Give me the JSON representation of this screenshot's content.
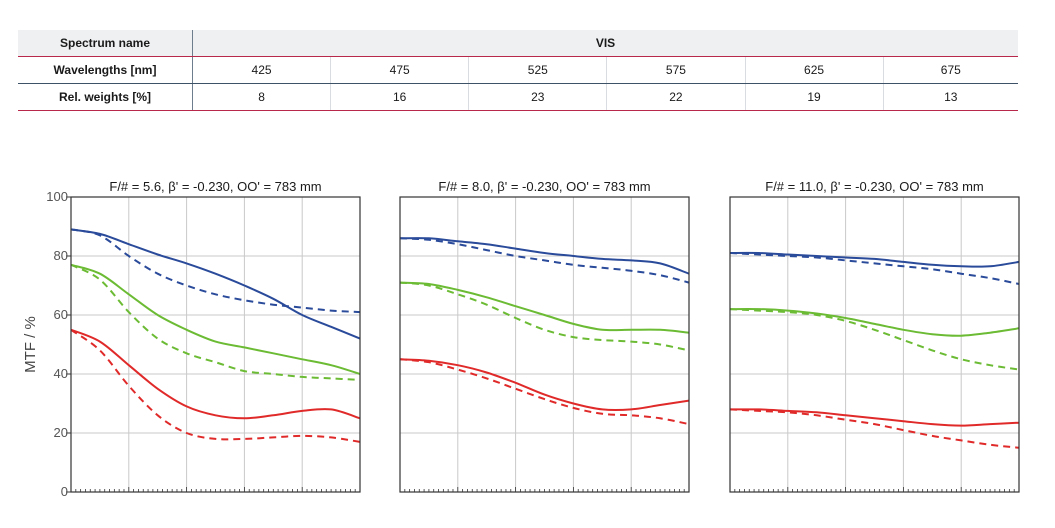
{
  "table": {
    "spectrum_label": "Spectrum name",
    "spectrum_value": "VIS",
    "wavelength_label": "Wavelengths [nm]",
    "weight_label": "Rel. weights [%]",
    "wavelengths": [
      "425",
      "475",
      "525",
      "575",
      "625",
      "675"
    ],
    "weights": [
      "8",
      "16",
      "23",
      "22",
      "19",
      "13"
    ]
  },
  "colors": {
    "blue": "#2a4a9a",
    "green": "#6cbb34",
    "red": "#e02a2a",
    "grid": "#c9c9c9",
    "frame": "#333333"
  },
  "chart_data": [
    {
      "type": "line",
      "title": "F/# = 5.6, β' = -0.230, OO' = 783 mm",
      "ylabel": "MTF / %",
      "ylim": [
        0,
        100
      ],
      "yticks": [
        0,
        20,
        40,
        60,
        80,
        100
      ],
      "xlim": [
        0,
        1
      ],
      "grid": true,
      "series": [
        {
          "color": "blue",
          "dashed": false,
          "x": [
            0,
            0.1,
            0.2,
            0.3,
            0.4,
            0.5,
            0.6,
            0.7,
            0.8,
            0.9,
            1
          ],
          "y": [
            89,
            87.5,
            84,
            80.5,
            77.5,
            74,
            70,
            65.5,
            60,
            56,
            52
          ]
        },
        {
          "color": "blue",
          "dashed": true,
          "x": [
            0,
            0.1,
            0.2,
            0.3,
            0.4,
            0.5,
            0.6,
            0.7,
            0.8,
            0.9,
            1
          ],
          "y": [
            89,
            87,
            80,
            74,
            70,
            67,
            65,
            63.5,
            62.5,
            61.5,
            61
          ]
        },
        {
          "color": "green",
          "dashed": false,
          "x": [
            0,
            0.1,
            0.2,
            0.3,
            0.4,
            0.5,
            0.6,
            0.7,
            0.8,
            0.9,
            1
          ],
          "y": [
            77,
            74,
            67,
            60,
            55,
            51,
            49,
            47,
            45,
            43,
            40
          ]
        },
        {
          "color": "green",
          "dashed": true,
          "x": [
            0,
            0.1,
            0.2,
            0.3,
            0.4,
            0.5,
            0.6,
            0.7,
            0.8,
            0.9,
            1
          ],
          "y": [
            77,
            72,
            61,
            52,
            47,
            44,
            41,
            40,
            39,
            38.5,
            38
          ]
        },
        {
          "color": "red",
          "dashed": false,
          "x": [
            0,
            0.1,
            0.2,
            0.3,
            0.4,
            0.5,
            0.6,
            0.7,
            0.8,
            0.9,
            1
          ],
          "y": [
            55,
            51,
            43,
            35,
            29,
            26,
            25,
            26,
            27.5,
            28,
            25
          ]
        },
        {
          "color": "red",
          "dashed": true,
          "x": [
            0,
            0.1,
            0.2,
            0.3,
            0.4,
            0.5,
            0.6,
            0.7,
            0.8,
            0.9,
            1
          ],
          "y": [
            55,
            48,
            36,
            26,
            20,
            18,
            18,
            18.5,
            19,
            18.5,
            17
          ]
        }
      ]
    },
    {
      "type": "line",
      "title": "F/# = 8.0, β' = -0.230, OO' = 783 mm",
      "ylim": [
        0,
        100
      ],
      "xlim": [
        0,
        1
      ],
      "grid": true,
      "series": [
        {
          "color": "blue",
          "dashed": false,
          "x": [
            0,
            0.1,
            0.2,
            0.3,
            0.4,
            0.5,
            0.6,
            0.7,
            0.8,
            0.9,
            1
          ],
          "y": [
            86,
            86,
            85,
            84,
            82.5,
            81,
            80,
            79,
            78.5,
            77.5,
            74
          ]
        },
        {
          "color": "blue",
          "dashed": true,
          "x": [
            0,
            0.1,
            0.2,
            0.3,
            0.4,
            0.5,
            0.6,
            0.7,
            0.8,
            0.9,
            1
          ],
          "y": [
            86,
            85.5,
            84,
            82,
            80,
            78.5,
            77,
            76,
            75,
            73.5,
            71
          ]
        },
        {
          "color": "green",
          "dashed": false,
          "x": [
            0,
            0.1,
            0.2,
            0.3,
            0.4,
            0.5,
            0.6,
            0.7,
            0.8,
            0.9,
            1
          ],
          "y": [
            71,
            70.5,
            68.5,
            66,
            63,
            60,
            57,
            55,
            55,
            55,
            54
          ]
        },
        {
          "color": "green",
          "dashed": true,
          "x": [
            0,
            0.1,
            0.2,
            0.3,
            0.4,
            0.5,
            0.6,
            0.7,
            0.8,
            0.9,
            1
          ],
          "y": [
            71,
            70,
            67,
            63.5,
            59,
            55,
            52.5,
            51.5,
            51,
            50,
            48
          ]
        },
        {
          "color": "red",
          "dashed": false,
          "x": [
            0,
            0.1,
            0.2,
            0.3,
            0.4,
            0.5,
            0.6,
            0.7,
            0.8,
            0.9,
            1
          ],
          "y": [
            45,
            44.5,
            43,
            40.5,
            37,
            33,
            30,
            28,
            28,
            29.5,
            31
          ]
        },
        {
          "color": "red",
          "dashed": true,
          "x": [
            0,
            0.1,
            0.2,
            0.3,
            0.4,
            0.5,
            0.6,
            0.7,
            0.8,
            0.9,
            1
          ],
          "y": [
            45,
            44,
            41.5,
            38.5,
            35,
            31.5,
            28.5,
            26.5,
            26,
            25,
            23
          ]
        }
      ]
    },
    {
      "type": "line",
      "title": "F/# = 11.0, β' = -0.230, OO' = 783 mm",
      "ylim": [
        0,
        100
      ],
      "xlim": [
        0,
        1
      ],
      "grid": true,
      "series": [
        {
          "color": "blue",
          "dashed": false,
          "x": [
            0,
            0.1,
            0.2,
            0.3,
            0.4,
            0.5,
            0.6,
            0.7,
            0.8,
            0.9,
            1
          ],
          "y": [
            81,
            81,
            80.5,
            80,
            79.5,
            79,
            78,
            77,
            76.5,
            76.5,
            78
          ]
        },
        {
          "color": "blue",
          "dashed": true,
          "x": [
            0,
            0.1,
            0.2,
            0.3,
            0.4,
            0.5,
            0.6,
            0.7,
            0.8,
            0.9,
            1
          ],
          "y": [
            81,
            80.5,
            80,
            79.5,
            78.5,
            77.5,
            76.5,
            75.5,
            74,
            72.5,
            70.5
          ]
        },
        {
          "color": "green",
          "dashed": false,
          "x": [
            0,
            0.1,
            0.2,
            0.3,
            0.4,
            0.5,
            0.6,
            0.7,
            0.8,
            0.9,
            1
          ],
          "y": [
            62,
            62,
            61.5,
            60.5,
            59,
            57,
            55,
            53.5,
            53,
            54,
            55.5
          ]
        },
        {
          "color": "green",
          "dashed": true,
          "x": [
            0,
            0.1,
            0.2,
            0.3,
            0.4,
            0.5,
            0.6,
            0.7,
            0.8,
            0.9,
            1
          ],
          "y": [
            62,
            61.5,
            61,
            60,
            58,
            55,
            51.5,
            48,
            45,
            43,
            41.5
          ]
        },
        {
          "color": "red",
          "dashed": false,
          "x": [
            0,
            0.1,
            0.2,
            0.3,
            0.4,
            0.5,
            0.6,
            0.7,
            0.8,
            0.9,
            1
          ],
          "y": [
            28,
            28,
            27.5,
            27,
            26,
            25,
            24,
            23,
            22.5,
            23,
            23.5
          ]
        },
        {
          "color": "red",
          "dashed": true,
          "x": [
            0,
            0.1,
            0.2,
            0.3,
            0.4,
            0.5,
            0.6,
            0.7,
            0.8,
            0.9,
            1
          ],
          "y": [
            28,
            27.5,
            27,
            26,
            24.5,
            23,
            21,
            19,
            17.5,
            16,
            15
          ]
        }
      ]
    }
  ]
}
